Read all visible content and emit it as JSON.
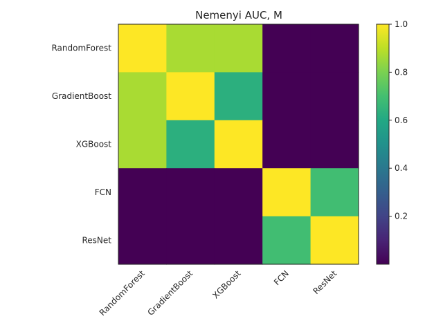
{
  "chart_data": {
    "type": "heatmap",
    "title": "Nemenyi AUC, M",
    "rows": [
      "RandomForest",
      "GradientBoost",
      "XGBoost",
      "FCN",
      "ResNet"
    ],
    "columns": [
      "RandomForest",
      "GradientBoost",
      "XGBoost",
      "FCN",
      "ResNet"
    ],
    "values": [
      [
        1.0,
        0.87,
        0.87,
        0.0,
        0.0
      ],
      [
        0.87,
        1.0,
        0.63,
        0.0,
        0.0
      ],
      [
        0.87,
        0.63,
        1.0,
        0.0,
        0.0
      ],
      [
        0.0,
        0.0,
        0.0,
        1.0,
        0.69
      ],
      [
        0.0,
        0.0,
        0.0,
        0.69,
        1.0
      ]
    ],
    "colorbar": {
      "colormap": "viridis",
      "range": [
        0.0,
        1.0
      ],
      "ticks": [
        0.2,
        0.4,
        0.6,
        0.8,
        1.0
      ],
      "tick_labels": [
        "0.2",
        "0.4",
        "0.6",
        "0.8",
        "1.0"
      ]
    },
    "grid": false
  }
}
